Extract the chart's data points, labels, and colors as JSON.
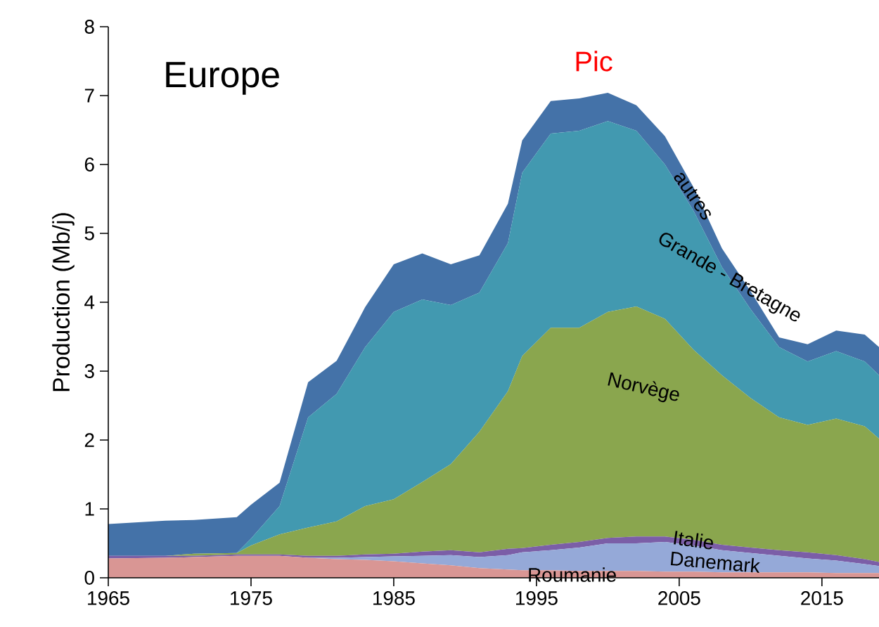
{
  "chart_data": {
    "type": "area",
    "stacked": true,
    "title": "Europe",
    "ylabel": "Production (Mb/j)",
    "annotations": [
      "Pic"
    ],
    "x": [
      1965,
      1969,
      1971,
      1974,
      1975,
      1977,
      1979,
      1981,
      1983,
      1985,
      1987,
      1989,
      1991,
      1993,
      1994,
      1996,
      1998,
      2000,
      2002,
      2004,
      2006,
      2008,
      2010,
      2012,
      2014,
      2016,
      2018,
      2019
    ],
    "series": [
      {
        "name": "Roumanie",
        "color": "#d99694",
        "values": [
          0.28,
          0.29,
          0.3,
          0.32,
          0.32,
          0.32,
          0.29,
          0.27,
          0.26,
          0.24,
          0.21,
          0.18,
          0.14,
          0.12,
          0.11,
          0.11,
          0.1,
          0.1,
          0.1,
          0.09,
          0.09,
          0.08,
          0.08,
          0.08,
          0.08,
          0.07,
          0.07,
          0.07
        ]
      },
      {
        "name": "Danemark",
        "color": "#95a9d8",
        "values": [
          0,
          0,
          0,
          0,
          0,
          0,
          0,
          0.02,
          0.04,
          0.07,
          0.11,
          0.15,
          0.16,
          0.21,
          0.26,
          0.29,
          0.34,
          0.4,
          0.4,
          0.43,
          0.38,
          0.32,
          0.28,
          0.24,
          0.2,
          0.18,
          0.13,
          0.1
        ]
      },
      {
        "name": "Italie",
        "color": "#7b5ea7",
        "values": [
          0.04,
          0.03,
          0.02,
          0.02,
          0.02,
          0.02,
          0.03,
          0.03,
          0.04,
          0.04,
          0.06,
          0.07,
          0.07,
          0.09,
          0.06,
          0.08,
          0.08,
          0.08,
          0.1,
          0.08,
          0.08,
          0.08,
          0.08,
          0.08,
          0.09,
          0.08,
          0.07,
          0.06
        ]
      },
      {
        "name": "Norvège",
        "color": "#8aa64e",
        "values": [
          0,
          0,
          0.03,
          0.02,
          0.13,
          0.29,
          0.41,
          0.5,
          0.7,
          0.79,
          1.01,
          1.25,
          1.75,
          2.29,
          2.79,
          3.15,
          3.11,
          3.28,
          3.34,
          3.16,
          2.76,
          2.46,
          2.17,
          1.93,
          1.85,
          1.98,
          1.93,
          1.79
        ]
      },
      {
        "name": "Grande - Bretagne",
        "color": "#4299b0",
        "values": [
          0,
          0,
          0,
          0,
          0.1,
          0.41,
          1.6,
          1.85,
          2.31,
          2.72,
          2.65,
          2.31,
          2.02,
          2.15,
          2.66,
          2.82,
          2.86,
          2.77,
          2.55,
          2.24,
          2.02,
          1.57,
          1.29,
          1.02,
          0.92,
          0.98,
          0.94,
          0.92
        ]
      },
      {
        "name": "autres",
        "color": "#4472a8",
        "values": [
          0.46,
          0.51,
          0.49,
          0.52,
          0.49,
          0.34,
          0.51,
          0.48,
          0.58,
          0.69,
          0.67,
          0.59,
          0.54,
          0.57,
          0.47,
          0.47,
          0.47,
          0.41,
          0.37,
          0.41,
          0.34,
          0.27,
          0.26,
          0.14,
          0.25,
          0.3,
          0.39,
          0.41
        ]
      }
    ],
    "xlim": [
      1965,
      2019
    ],
    "ylim": [
      0,
      8
    ],
    "xticks": [
      1965,
      1975,
      1985,
      1995,
      2005,
      2015
    ],
    "yticks": [
      0,
      1,
      2,
      3,
      4,
      5,
      6,
      7,
      8
    ]
  }
}
